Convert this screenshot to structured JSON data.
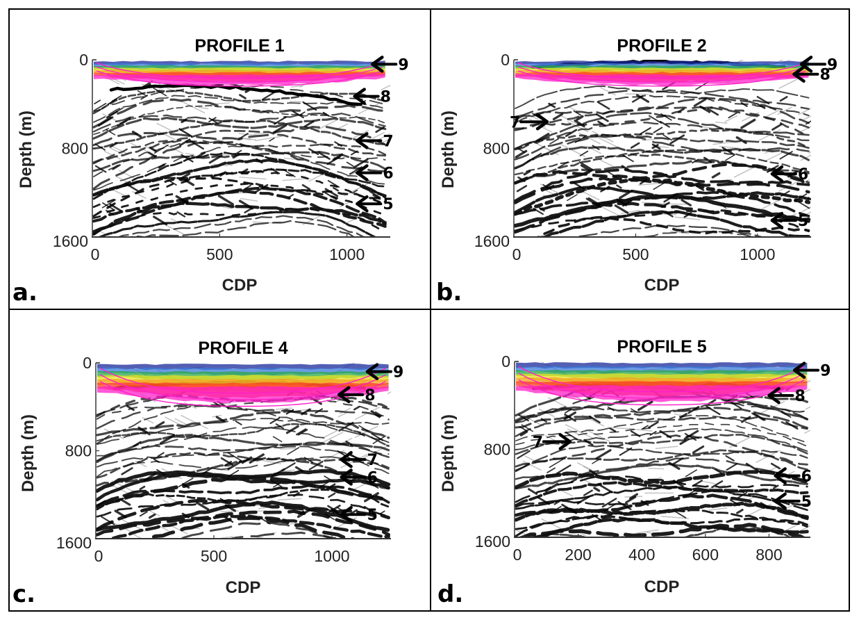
{
  "figure": {
    "panels": [
      {
        "letter": "a.",
        "title": "PROFILE 1",
        "xlabel": "CDP",
        "ylabel": "Depth (m)",
        "xlim": [
          0,
          1170
        ],
        "ylim": [
          0,
          1600
        ],
        "xticks": [
          0,
          500,
          1000
        ],
        "yticks": [
          0,
          800,
          1600
        ],
        "data_extent_x": [
          0,
          1150
        ],
        "markers": [
          {
            "label": "9",
            "cdp": 1100,
            "depth": 40,
            "direction": "left"
          },
          {
            "label": "8",
            "cdp": 1030,
            "depth": 330,
            "direction": "left"
          },
          {
            "label": "7",
            "cdp": 1040,
            "depth": 730,
            "direction": "left"
          },
          {
            "label": "6",
            "cdp": 1040,
            "depth": 1020,
            "direction": "left"
          },
          {
            "label": "5",
            "cdp": 1040,
            "depth": 1300,
            "direction": "left"
          }
        ]
      },
      {
        "letter": "b.",
        "title": "PROFILE 2",
        "xlabel": "CDP",
        "ylabel": "Depth (m)",
        "xlim": [
          0,
          1220
        ],
        "ylim": [
          0,
          1600
        ],
        "xticks": [
          0,
          500,
          1000
        ],
        "yticks": [
          0,
          800,
          1600
        ],
        "data_extent_x": [
          0,
          1210
        ],
        "markers": [
          {
            "label": "9",
            "cdp": 1180,
            "depth": 40,
            "direction": "left"
          },
          {
            "label": "8",
            "cdp": 1150,
            "depth": 130,
            "direction": "left"
          },
          {
            "label": "7",
            "cdp": 40,
            "depth": 560,
            "direction": "right"
          },
          {
            "label": "6",
            "cdp": 1060,
            "depth": 1030,
            "direction": "left"
          },
          {
            "label": "5",
            "cdp": 1060,
            "depth": 1450,
            "direction": "left"
          }
        ]
      },
      {
        "letter": "c.",
        "title": "PROFILE 4",
        "xlabel": "CDP",
        "ylabel": "Depth (m)",
        "xlim": [
          0,
          1250
        ],
        "ylim": [
          0,
          1600
        ],
        "xticks": [
          0,
          500,
          1000
        ],
        "yticks": [
          0,
          800,
          1600
        ],
        "data_extent_x": [
          0,
          1240
        ],
        "markers": [
          {
            "label": "9",
            "cdp": 1150,
            "depth": 80,
            "direction": "left"
          },
          {
            "label": "8",
            "cdp": 1030,
            "depth": 290,
            "direction": "left"
          },
          {
            "label": "7",
            "cdp": 1040,
            "depth": 880,
            "direction": "left"
          },
          {
            "label": "6",
            "cdp": 1040,
            "depth": 1040,
            "direction": "left"
          },
          {
            "label": "5",
            "cdp": 1040,
            "depth": 1380,
            "direction": "left"
          }
        ]
      },
      {
        "letter": "d.",
        "title": "PROFILE 5",
        "xlabel": "CDP",
        "ylabel": "Depth (m)",
        "xlim": [
          0,
          930
        ],
        "ylim": [
          0,
          1600
        ],
        "xticks": [
          0,
          200,
          400,
          600,
          800
        ],
        "yticks": [
          0,
          800,
          1600
        ],
        "data_extent_x": [
          0,
          920
        ],
        "markers": [
          {
            "label": "9",
            "cdp": 880,
            "depth": 80,
            "direction": "left"
          },
          {
            "label": "8",
            "cdp": 800,
            "depth": 310,
            "direction": "left"
          },
          {
            "label": "7",
            "cdp": 100,
            "depth": 730,
            "direction": "right"
          },
          {
            "label": "6",
            "cdp": 820,
            "depth": 1040,
            "direction": "left"
          },
          {
            "label": "5",
            "cdp": 820,
            "depth": 1270,
            "direction": "left"
          }
        ]
      }
    ],
    "colors": {
      "border": "#000000",
      "axis": "#333333",
      "reflector": "#111111",
      "overlay_band": [
        "#1a2a9a",
        "#3a7ad8",
        "#2aa84a",
        "#e8e020",
        "#f0a020",
        "#ff3a2a",
        "#ff20c8"
      ]
    }
  }
}
